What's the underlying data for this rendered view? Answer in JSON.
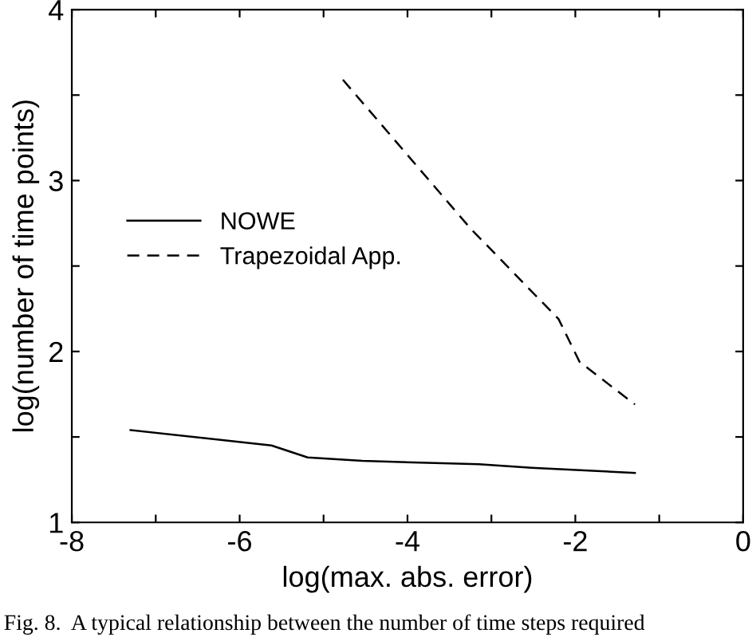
{
  "chart_data": {
    "type": "line",
    "xlabel": "log(max. abs. error)",
    "ylabel": "log(number of time points)",
    "xlim": [
      -8,
      0
    ],
    "ylim": [
      1,
      4
    ],
    "xticks": [
      -8,
      {
        "value": -7,
        "label": null
      },
      -6,
      {
        "value": -5,
        "label": null
      },
      -4,
      {
        "value": -3,
        "label": null
      },
      -2,
      {
        "value": -1,
        "label": null
      },
      0
    ],
    "yticks": [
      1,
      {
        "value": 1.5,
        "label": null
      },
      2,
      {
        "value": 2.5,
        "label": null
      },
      3,
      {
        "value": 3.5,
        "label": null
      },
      4
    ],
    "legend": "left",
    "grid": false,
    "series": [
      {
        "name": "NOWE",
        "color": "#000000",
        "line_style": "solid",
        "x": [
          -7.3,
          -5.62,
          -5.19,
          -4.54,
          -3.15,
          -2.52,
          -1.29
        ],
        "values": [
          1.54,
          1.45,
          1.38,
          1.36,
          1.34,
          1.32,
          1.29
        ]
      },
      {
        "name": "Trapezoidal App.",
        "color": "#000000",
        "line_style": "dashed",
        "x": [
          -4.77,
          -3.25,
          -2.2,
          -1.95,
          -1.29
        ],
        "values": [
          3.59,
          2.72,
          2.19,
          1.94,
          1.69
        ]
      }
    ],
    "annotations": [
      "Fig. 8.  A typical relationship between the number of time steps required"
    ]
  }
}
